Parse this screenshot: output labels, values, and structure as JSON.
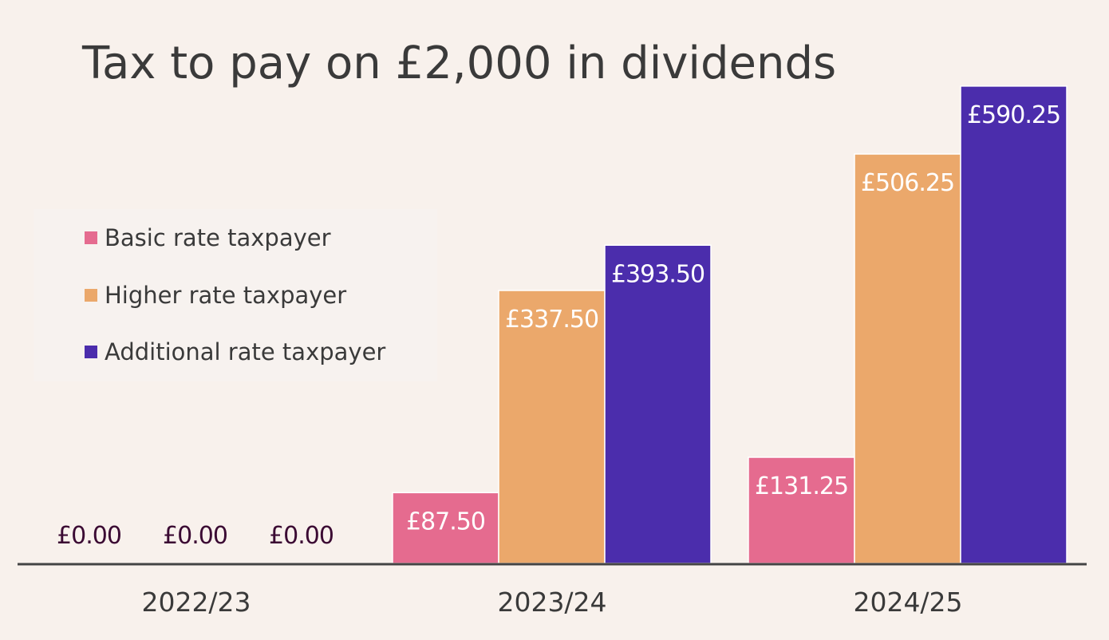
{
  "chart_data": {
    "type": "bar",
    "title": "Tax to pay on £2,000 in dividends",
    "categories": [
      "2022/23",
      "2023/24",
      "2024/25"
    ],
    "series": [
      {
        "name": "Basic rate taxpayer",
        "color": "#e56b8f",
        "values": [
          0,
          87.5,
          131.25
        ],
        "labels": [
          "£0.00",
          "£87.50",
          "£131.25"
        ]
      },
      {
        "name": "Higher rate taxpayer",
        "color": "#eba86b",
        "values": [
          0,
          337.5,
          506.25
        ],
        "labels": [
          "£0.00",
          "£337.50",
          "£506.25"
        ]
      },
      {
        "name": "Additional rate taxpayer",
        "color": "#4b2dac",
        "values": [
          0,
          393.5,
          590.25
        ],
        "labels": [
          "£0.00",
          "£393.50",
          "£590.25"
        ]
      }
    ],
    "label_color_inside": "#ffffff",
    "label_color_zero": "#3b0a33",
    "axis_color": "#444444",
    "ylim": [
      0,
      600
    ],
    "grid": false,
    "legend_position": "left"
  }
}
